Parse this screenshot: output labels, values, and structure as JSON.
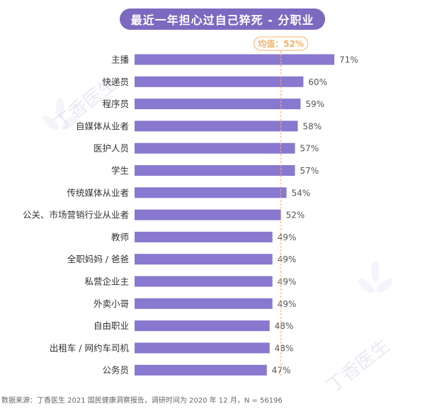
{
  "title": "最近一年担心过自己猝死 - 分职业",
  "source": "数据来源：丁香医生 2021 国民健康洞察报告，调研时间为 2020 年 12 月，N = 56196",
  "watermark_text": "丁香医生",
  "colors": {
    "bar": "#8878cf",
    "title_bg": "#7b6ac0",
    "average": "#f5b26b"
  },
  "chart_data": {
    "type": "bar",
    "orientation": "horizontal",
    "title": "最近一年担心过自己猝死 - 分职业",
    "categories": [
      "主播",
      "快递员",
      "程序员",
      "自媒体从业者",
      "医护人员",
      "学生",
      "传统媒体从业者",
      "公关、市场营销行业从业者",
      "教师",
      "全职妈妈 / 爸爸",
      "私营企业主",
      "外卖小哥",
      "自由职业",
      "出租车 / 网约车司机",
      "公务员"
    ],
    "values": [
      71,
      60,
      59,
      58,
      57,
      57,
      54,
      52,
      49,
      49,
      49,
      49,
      48,
      48,
      47
    ],
    "value_labels": [
      "71%",
      "60%",
      "59%",
      "58%",
      "57%",
      "57%",
      "54%",
      "52%",
      "49%",
      "49%",
      "49%",
      "49%",
      "48%",
      "48%",
      "47%"
    ],
    "unit": "%",
    "average": {
      "label": "均值：52%",
      "value": 52
    },
    "xlim": [
      0,
      71
    ],
    "grid": false,
    "legend": "none"
  }
}
